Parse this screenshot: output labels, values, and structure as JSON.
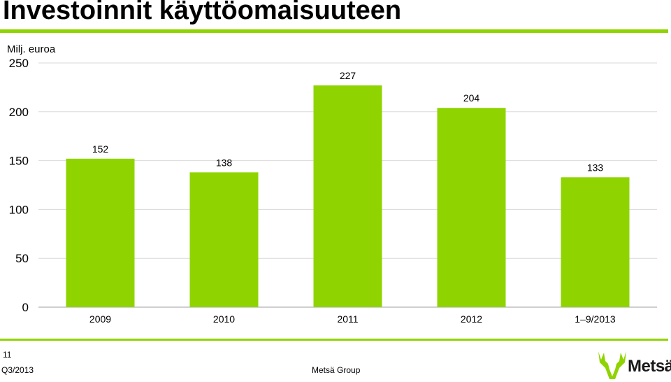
{
  "header": {
    "title": "Investoinnit käyttöomaisuuteen"
  },
  "colors": {
    "accent": "#8fd400",
    "bar": "#8fd400",
    "grid": "#d9d9d9",
    "axis": "#bfbfbf"
  },
  "chart_data": {
    "type": "bar",
    "unit_label": "Milj. euroa",
    "categories": [
      "2009",
      "2010",
      "2011",
      "2012",
      "1–9/2013"
    ],
    "values": [
      152,
      138,
      227,
      204,
      133
    ],
    "value_labels": [
      "152",
      "138",
      "227",
      "204",
      "133"
    ],
    "ylim": [
      0,
      250
    ],
    "yticks": [
      0,
      50,
      100,
      150,
      200,
      250
    ],
    "ytick_labels": [
      "0",
      "50",
      "100",
      "150",
      "200",
      "250"
    ],
    "grid": true,
    "legend": "none"
  },
  "footer": {
    "page_number": "11",
    "period": "Q3/2013",
    "company": "Metsä Group",
    "logo_text": "Metsä",
    "logo_icon": "antler-leaf-icon"
  }
}
